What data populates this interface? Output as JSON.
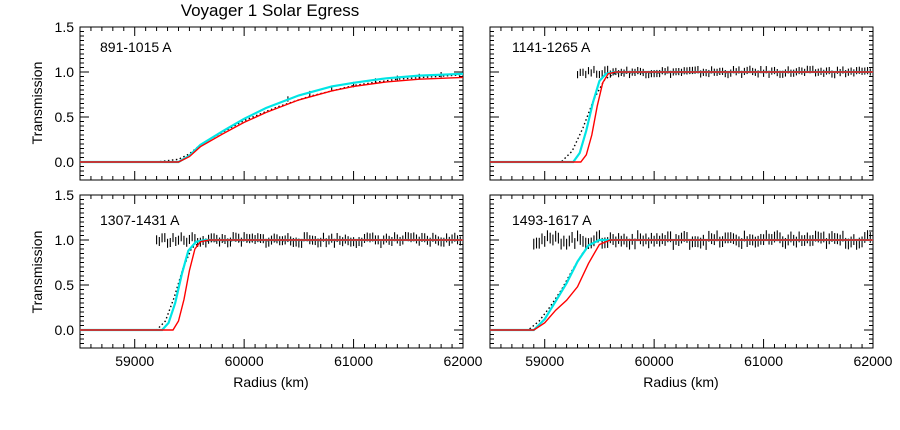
{
  "figure": {
    "title": "Voyager 1 Solar Egress",
    "colors": {
      "model_red": "#ff0000",
      "model_cyan": "#00e5e5",
      "data": "#000000",
      "axes": "#000000"
    }
  },
  "chart_data": [
    {
      "type": "line",
      "title": "Voyager 1 Solar Egress",
      "label": "891-1015 A",
      "xlabel": "",
      "ylabel": "Transmission",
      "xlim": [
        58500,
        62000
      ],
      "ylim": [
        -0.2,
        1.5
      ],
      "xticks": [
        59000,
        60000,
        61000,
        62000
      ],
      "xtick_labels_shown": false,
      "yticks": [
        0.0,
        0.5,
        1.0,
        1.5
      ],
      "ytick_labels": [
        "0.0",
        "0.5",
        "1.0",
        "1.5"
      ],
      "grid": false,
      "series": [
        {
          "role": "model-red",
          "color": "#ff0000",
          "style": "solid",
          "x": [
            58500,
            59400,
            59500,
            59600,
            59800,
            60000,
            60200,
            60500,
            60800,
            61000,
            61300,
            61600,
            62000
          ],
          "values": [
            0.0,
            0.0,
            0.06,
            0.17,
            0.31,
            0.44,
            0.55,
            0.69,
            0.79,
            0.84,
            0.89,
            0.92,
            0.94
          ]
        },
        {
          "role": "model-cyan",
          "color": "#00e5e5",
          "style": "solid",
          "x": [
            58500,
            59400,
            59500,
            59600,
            59800,
            60000,
            60200,
            60500,
            60800,
            61000,
            61300,
            61600,
            62000
          ],
          "values": [
            0.0,
            0.0,
            0.07,
            0.19,
            0.34,
            0.48,
            0.6,
            0.74,
            0.84,
            0.88,
            0.93,
            0.96,
            0.98
          ]
        },
        {
          "role": "model-dotted",
          "color": "#000000",
          "style": "dotted",
          "x": [
            58500,
            59200,
            59400,
            59500,
            59600,
            59800,
            60000,
            60300,
            60600,
            61000,
            61400,
            62000
          ],
          "values": [
            0.0,
            0.0,
            0.03,
            0.09,
            0.19,
            0.33,
            0.46,
            0.61,
            0.73,
            0.85,
            0.92,
            0.97
          ]
        },
        {
          "role": "data-with-errorbars",
          "color": "#000000",
          "style": "errorbar",
          "x": [
            60400,
            60600,
            60800,
            61000,
            61200,
            61400,
            61600,
            61800,
            62000
          ],
          "values": [
            0.7,
            0.76,
            0.82,
            0.86,
            0.9,
            0.93,
            0.95,
            0.97,
            0.98
          ],
          "error": 0.03
        }
      ]
    },
    {
      "type": "line",
      "title": "",
      "label": "1141-1265 A",
      "xlabel": "",
      "ylabel": "",
      "xlim": [
        58500,
        62000
      ],
      "ylim": [
        -0.2,
        1.5
      ],
      "xticks": [
        59000,
        60000,
        61000,
        62000
      ],
      "xtick_labels_shown": false,
      "yticks": [
        0.0,
        0.5,
        1.0,
        1.5
      ],
      "ytick_labels_shown": false,
      "grid": false,
      "series": [
        {
          "role": "model-red",
          "color": "#ff0000",
          "style": "solid",
          "x": [
            58500,
            59330,
            59380,
            59430,
            59480,
            59530,
            59580,
            59650,
            62000
          ],
          "values": [
            0.0,
            0.0,
            0.08,
            0.3,
            0.62,
            0.88,
            0.98,
            1.0,
            1.0
          ]
        },
        {
          "role": "model-cyan",
          "color": "#00e5e5",
          "style": "solid",
          "x": [
            58500,
            59260,
            59320,
            59380,
            59440,
            59500,
            59560,
            59640,
            62000
          ],
          "values": [
            0.0,
            0.0,
            0.1,
            0.35,
            0.66,
            0.9,
            0.98,
            1.0,
            1.0
          ]
        },
        {
          "role": "model-dotted",
          "color": "#000000",
          "style": "dotted",
          "x": [
            58500,
            59150,
            59250,
            59350,
            59450,
            59550,
            59650,
            62000
          ],
          "values": [
            0.0,
            0.0,
            0.12,
            0.38,
            0.7,
            0.92,
            0.99,
            1.0
          ]
        },
        {
          "role": "data-with-errorbars",
          "color": "#000000",
          "style": "errorbar",
          "x_range": [
            59300,
            62000
          ],
          "level": 1.0,
          "noise": 0.03,
          "error": 0.04
        }
      ]
    },
    {
      "type": "line",
      "title": "",
      "label": "1307-1431 A",
      "xlabel": "Radius (km)",
      "ylabel": "Transmission",
      "xlim": [
        58500,
        62000
      ],
      "ylim": [
        -0.2,
        1.5
      ],
      "xticks": [
        59000,
        60000,
        61000,
        62000
      ],
      "xtick_labels": [
        "59000",
        "60000",
        "61000",
        "62000"
      ],
      "yticks": [
        0.0,
        0.5,
        1.0,
        1.5
      ],
      "ytick_labels": [
        "0.0",
        "0.5",
        "1.0",
        "1.5"
      ],
      "grid": false,
      "series": [
        {
          "role": "model-red",
          "color": "#ff0000",
          "style": "solid",
          "x": [
            58500,
            59350,
            59400,
            59450,
            59500,
            59550,
            59600,
            59680,
            62000
          ],
          "values": [
            0.0,
            0.0,
            0.1,
            0.34,
            0.66,
            0.9,
            0.98,
            1.0,
            1.0
          ]
        },
        {
          "role": "model-cyan",
          "color": "#00e5e5",
          "style": "solid",
          "x": [
            58500,
            59250,
            59310,
            59370,
            59430,
            59490,
            59560,
            59650,
            62000
          ],
          "values": [
            0.0,
            0.0,
            0.08,
            0.3,
            0.62,
            0.88,
            0.98,
            1.0,
            1.0
          ]
        },
        {
          "role": "model-dotted",
          "color": "#000000",
          "style": "dotted",
          "x": [
            58500,
            59200,
            59280,
            59360,
            59440,
            59520,
            59620,
            62000
          ],
          "values": [
            0.0,
            0.0,
            0.1,
            0.36,
            0.68,
            0.91,
            0.99,
            1.0
          ]
        },
        {
          "role": "data-with-errorbars",
          "color": "#000000",
          "style": "errorbar",
          "x_range": [
            59200,
            62000
          ],
          "level": 1.0,
          "noise": 0.04,
          "error": 0.05
        }
      ]
    },
    {
      "type": "line",
      "title": "",
      "label": "1493-1617 A",
      "xlabel": "Radius (km)",
      "ylabel": "",
      "xlim": [
        58500,
        62000
      ],
      "ylim": [
        -0.2,
        1.5
      ],
      "xticks": [
        59000,
        60000,
        61000,
        62000
      ],
      "xtick_labels": [
        "59000",
        "60000",
        "61000",
        "62000"
      ],
      "yticks": [
        0.0,
        0.5,
        1.0,
        1.5
      ],
      "ytick_labels_shown": false,
      "grid": false,
      "series": [
        {
          "role": "model-red",
          "color": "#ff0000",
          "style": "solid",
          "x": [
            58500,
            58900,
            59000,
            59100,
            59200,
            59300,
            59400,
            59500,
            59600,
            62000
          ],
          "values": [
            0.0,
            0.0,
            0.08,
            0.22,
            0.33,
            0.48,
            0.74,
            0.95,
            1.0,
            1.0
          ]
        },
        {
          "role": "model-cyan",
          "color": "#00e5e5",
          "style": "solid",
          "x": [
            58500,
            58900,
            59000,
            59100,
            59200,
            59300,
            59400,
            59500,
            59600,
            62000
          ],
          "values": [
            0.0,
            0.0,
            0.12,
            0.32,
            0.52,
            0.76,
            0.94,
            1.0,
            1.0,
            1.0
          ]
        },
        {
          "role": "model-dotted",
          "color": "#000000",
          "style": "dotted",
          "x": [
            58500,
            58850,
            58950,
            59050,
            59150,
            59250,
            59350,
            59450,
            59550,
            62000
          ],
          "values": [
            0.0,
            0.0,
            0.1,
            0.26,
            0.44,
            0.66,
            0.86,
            0.97,
            1.0,
            1.0
          ]
        },
        {
          "role": "data-with-errorbars",
          "color": "#000000",
          "style": "errorbar",
          "x_range": [
            58900,
            62000
          ],
          "level": 1.0,
          "noise": 0.05,
          "error": 0.06
        }
      ]
    }
  ]
}
